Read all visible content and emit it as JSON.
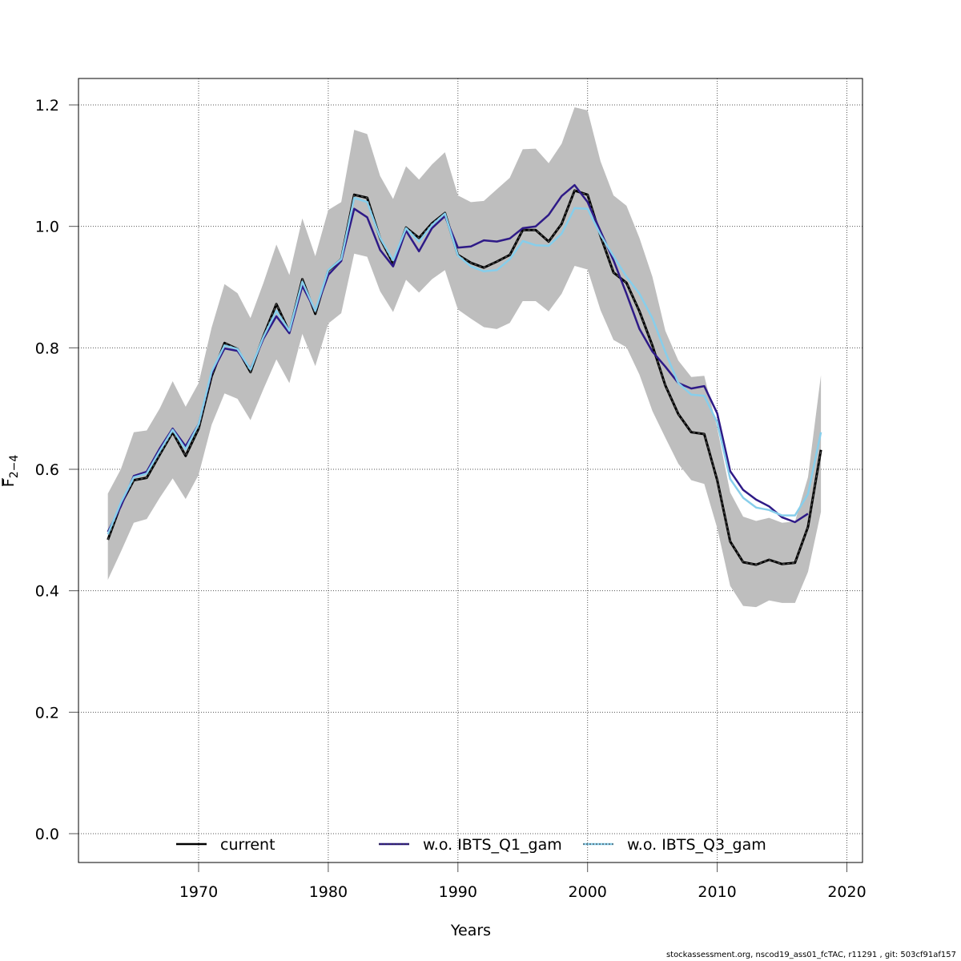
{
  "chart_data": {
    "type": "line",
    "title": "",
    "xlabel": "Years",
    "ylabel": "F̄ 2–4",
    "ylabel_main": "F",
    "ylabel_sub": "2−4",
    "xlim": [
      1961,
      2021
    ],
    "ylim": [
      -0.05,
      1.245
    ],
    "x_ticks": [
      1970,
      1980,
      1990,
      2000,
      2010,
      2020
    ],
    "x_tick_labels": [
      "1970",
      "1980",
      "1990",
      "2000",
      "2010",
      "2020"
    ],
    "y_ticks": [
      0.0,
      0.2,
      0.4,
      0.6,
      0.8,
      1.0,
      1.2
    ],
    "y_tick_labels": [
      "0.0",
      "0.2",
      "0.4",
      "0.6",
      "0.8",
      "1.0",
      "1.2"
    ],
    "grid": true,
    "legend_placement": "bottom",
    "x": [
      1963,
      1964,
      1965,
      1966,
      1967,
      1968,
      1969,
      1970,
      1971,
      1972,
      1973,
      1974,
      1975,
      1976,
      1977,
      1978,
      1979,
      1980,
      1981,
      1982,
      1983,
      1984,
      1985,
      1986,
      1987,
      1988,
      1989,
      1990,
      1991,
      1992,
      1993,
      1994,
      1995,
      1996,
      1997,
      1998,
      1999,
      2000,
      2001,
      2002,
      2003,
      2004,
      2005,
      2006,
      2007,
      2008,
      2009,
      2010,
      2011,
      2012,
      2013,
      2014,
      2015,
      2016,
      2017,
      2018
    ],
    "confidence_band": {
      "name": "current 95% CI",
      "color": "#bebebe",
      "upper": [
        0.56,
        0.6,
        0.661,
        0.664,
        0.7,
        0.745,
        0.703,
        0.742,
        0.833,
        0.905,
        0.89,
        0.849,
        0.907,
        0.97,
        0.92,
        1.013,
        0.951,
        1.027,
        1.04,
        1.159,
        1.152,
        1.083,
        1.045,
        1.099,
        1.077,
        1.102,
        1.122,
        1.051,
        1.04,
        1.042,
        1.061,
        1.08,
        1.127,
        1.128,
        1.104,
        1.136,
        1.196,
        1.191,
        1.107,
        1.051,
        1.034,
        0.981,
        0.917,
        0.828,
        0.779,
        0.752,
        0.754,
        0.668,
        0.562,
        0.522,
        0.515,
        0.52,
        0.512,
        0.514,
        0.587,
        0.755
      ],
      "lower": [
        0.418,
        0.464,
        0.512,
        0.518,
        0.553,
        0.585,
        0.551,
        0.591,
        0.673,
        0.725,
        0.716,
        0.681,
        0.732,
        0.781,
        0.742,
        0.823,
        0.77,
        0.84,
        0.857,
        0.955,
        0.95,
        0.893,
        0.859,
        0.912,
        0.891,
        0.913,
        0.928,
        0.863,
        0.848,
        0.834,
        0.831,
        0.841,
        0.877,
        0.877,
        0.86,
        0.889,
        0.935,
        0.929,
        0.862,
        0.813,
        0.801,
        0.756,
        0.696,
        0.652,
        0.609,
        0.582,
        0.576,
        0.503,
        0.408,
        0.375,
        0.373,
        0.384,
        0.38,
        0.38,
        0.431,
        0.53
      ]
    },
    "series": [
      {
        "name": "current",
        "color": "#000000",
        "style": "solid",
        "values": [
          0.484,
          0.542,
          0.582,
          0.586,
          0.624,
          0.661,
          0.622,
          0.667,
          0.753,
          0.808,
          0.798,
          0.76,
          0.819,
          0.872,
          0.826,
          0.913,
          0.856,
          0.927,
          0.946,
          1.052,
          1.047,
          0.98,
          0.939,
          0.998,
          0.981,
          1.005,
          1.022,
          0.953,
          0.94,
          0.932,
          0.942,
          0.953,
          0.994,
          0.994,
          0.975,
          1.004,
          1.059,
          1.052,
          0.984,
          0.924,
          0.907,
          0.86,
          0.804,
          0.738,
          0.691,
          0.661,
          0.658,
          0.582,
          0.481,
          0.447,
          0.443,
          0.451,
          0.444,
          0.446,
          0.505,
          0.632
        ]
      },
      {
        "name": "w.o. IBTS_Q1_gam",
        "color": "#2e1a87",
        "style": "solid",
        "values": [
          0.497,
          0.539,
          0.589,
          0.596,
          0.634,
          0.667,
          0.638,
          0.674,
          0.758,
          0.799,
          0.795,
          0.765,
          0.815,
          0.852,
          0.824,
          0.902,
          0.861,
          0.92,
          0.943,
          1.029,
          1.015,
          0.961,
          0.934,
          0.993,
          0.959,
          0.997,
          1.017,
          0.965,
          0.967,
          0.977,
          0.975,
          0.98,
          0.997,
          1.0,
          1.019,
          1.05,
          1.068,
          1.04,
          0.992,
          0.944,
          0.889,
          0.831,
          0.794,
          0.769,
          0.742,
          0.733,
          0.737,
          0.692,
          0.597,
          0.566,
          0.55,
          0.539,
          0.521,
          0.513,
          0.527,
          null
        ]
      },
      {
        "name": "w.o. IBTS_Q3_gam",
        "color": "#87ceeb",
        "style": "solid",
        "values": [
          0.493,
          0.545,
          0.587,
          0.593,
          0.63,
          0.665,
          0.633,
          0.674,
          0.761,
          0.804,
          0.798,
          0.764,
          0.818,
          0.861,
          0.828,
          0.909,
          0.861,
          0.928,
          0.946,
          1.047,
          1.04,
          0.981,
          0.944,
          0.997,
          0.975,
          1.002,
          1.021,
          0.952,
          0.934,
          0.926,
          0.928,
          0.946,
          0.976,
          0.969,
          0.968,
          0.988,
          1.03,
          1.029,
          0.986,
          0.951,
          0.917,
          0.889,
          0.849,
          0.793,
          0.742,
          0.723,
          0.721,
          0.677,
          0.584,
          0.553,
          0.537,
          0.533,
          0.524,
          0.524,
          0.559,
          0.661
        ]
      }
    ],
    "legend": [
      {
        "label": "current",
        "color": "#000000",
        "dash": false
      },
      {
        "label": "w.o. IBTS_Q1_gam",
        "color": "#2e1a87",
        "dash": true
      },
      {
        "label": "w.o. IBTS_Q3_gam",
        "color": "#87ceeb",
        "dash": true
      }
    ]
  },
  "footer": "stockassessment.org, nscod19_ass01_fcTAC, r11291 , git: 503cf91af157"
}
